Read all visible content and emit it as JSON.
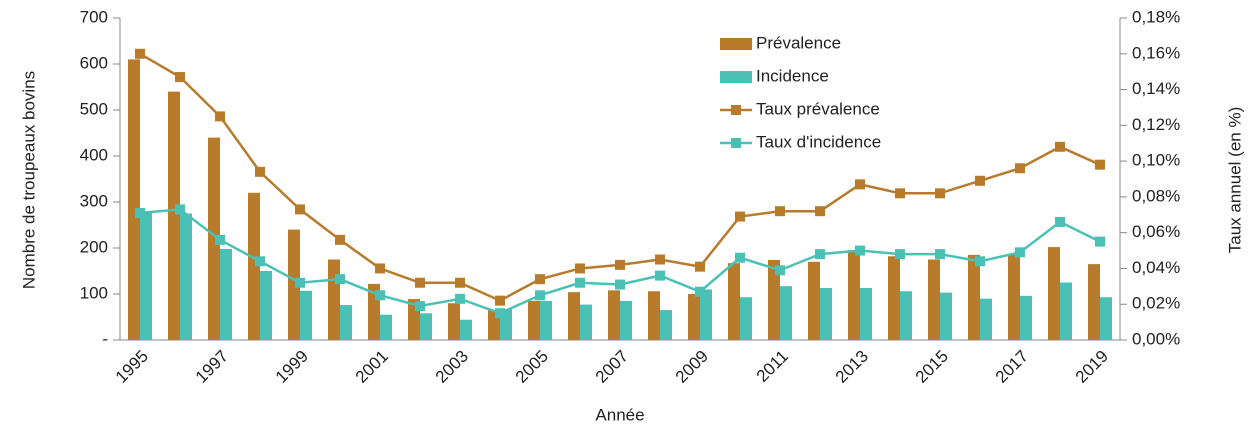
{
  "chart_data": {
    "type": "bar",
    "x_label": "Année",
    "y_label": "Nombre de troupeaux bovins",
    "y2_label": "Taux annuel (en %)",
    "categories": [
      "1995",
      null,
      "1997",
      null,
      "1999",
      null,
      "2001",
      null,
      "2003",
      null,
      "2005",
      null,
      "2007",
      null,
      "2009",
      null,
      "2011",
      null,
      "2013",
      null,
      "2015",
      null,
      "2017",
      null,
      "2019"
    ],
    "ylim": [
      0,
      700
    ],
    "yticks": [
      {
        "value": 0,
        "label": "-"
      },
      100,
      200,
      300,
      400,
      500,
      600,
      700
    ],
    "y2lim": [
      0,
      0.18
    ],
    "y2ticks": [
      {
        "value": 0,
        "label": "0,00%"
      },
      {
        "value": 0.02,
        "label": "0,02%"
      },
      {
        "value": 0.04,
        "label": "0,04%"
      },
      {
        "value": 0.06,
        "label": "0,06%"
      },
      {
        "value": 0.08,
        "label": "0,08%"
      },
      {
        "value": 0.1,
        "label": "0,10%"
      },
      {
        "value": 0.12,
        "label": "0,12%"
      },
      {
        "value": 0.14,
        "label": "0,14%"
      },
      {
        "value": 0.16,
        "label": "0,16%"
      },
      {
        "value": 0.18,
        "label": "0,18%"
      }
    ],
    "series": [
      {
        "name": "Prévalence",
        "type": "bar",
        "color": "#b77b2b",
        "values": [
          610,
          540,
          440,
          320,
          240,
          175,
          122,
          89,
          80,
          65,
          85,
          104,
          108,
          106,
          100,
          167,
          174,
          170,
          195,
          182,
          175,
          185,
          185,
          202,
          165
        ]
      },
      {
        "name": "Incidence",
        "type": "bar",
        "color": "#4bc0b5",
        "values": [
          280,
          275,
          198,
          150,
          107,
          76,
          55,
          58,
          44,
          67,
          85,
          77,
          85,
          65,
          110,
          93,
          117,
          113,
          113,
          106,
          103,
          90,
          96,
          125,
          93
        ]
      },
      {
        "name": "Taux prévalence",
        "type": "line",
        "axis": "y2",
        "color": "#b77b2b",
        "values": [
          0.16,
          0.147,
          0.125,
          0.094,
          0.073,
          0.056,
          0.04,
          0.032,
          0.032,
          0.022,
          0.034,
          0.04,
          0.042,
          0.045,
          0.041,
          0.069,
          0.072,
          0.072,
          0.087,
          0.082,
          0.082,
          0.089,
          0.096,
          0.108,
          0.098
        ]
      },
      {
        "name": "Taux d'incidence",
        "type": "line",
        "axis": "y2",
        "color": "#4bc0b5",
        "values": [
          0.071,
          0.073,
          0.056,
          0.044,
          0.032,
          0.034,
          0.025,
          0.019,
          0.023,
          0.015,
          0.025,
          0.032,
          0.031,
          0.036,
          0.027,
          0.046,
          0.039,
          0.048,
          0.05,
          0.048,
          0.048,
          0.044,
          0.049,
          0.066,
          0.055
        ]
      }
    ]
  }
}
